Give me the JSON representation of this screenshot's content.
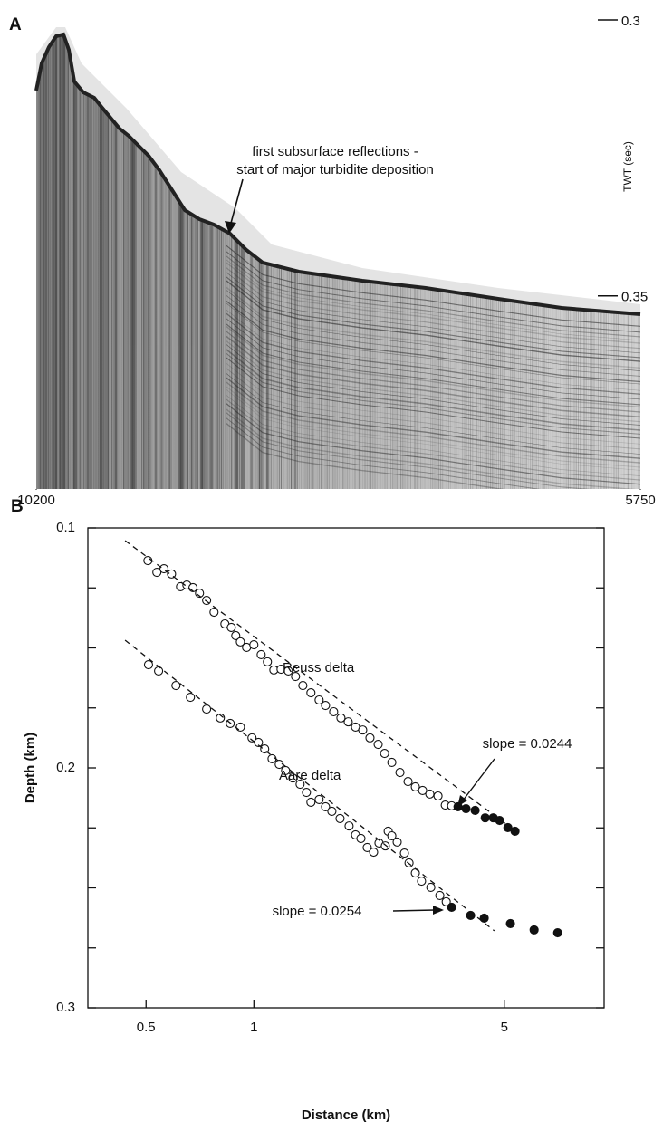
{
  "chart_data": [
    {
      "type": "image",
      "panel_label": "A",
      "annotation": [
        "first subsurface reflections -",
        "start of major turbidite deposition"
      ],
      "ylabel": "TWT (sec)",
      "ylim": [
        0.3,
        0.385
      ],
      "yticks": [
        0.3,
        0.35
      ],
      "xlim": [
        10200,
        5750
      ],
      "xticks": [
        10200,
        5750
      ]
    },
    {
      "type": "scatter",
      "panel_label": "B",
      "xlabel": "Distance (km)",
      "ylabel": "Depth (km)",
      "xscale": "log",
      "xlim": [
        0.344,
        9.5
      ],
      "xticks": [
        0.5,
        1,
        5
      ],
      "ylim": [
        0.1,
        0.3
      ],
      "yinvert": true,
      "yticks": [
        0.1,
        0.2,
        0.3
      ],
      "yminorticks": [
        0.125,
        0.15,
        0.175,
        0.225,
        0.25,
        0.275
      ],
      "color": "#111111",
      "annotations": [
        "Reuss delta",
        "Aare delta",
        "slope = 0.0244",
        "slope = 0.0254"
      ],
      "series": [
        {
          "marker": "open",
          "x": [
            0.506,
            0.536,
            0.561,
            0.589,
            0.624,
            0.65,
            0.676,
            0.705,
            0.738,
            0.774,
            0.83,
            0.865,
            0.89,
            0.917,
            0.954,
            1.0,
            1.048,
            1.091,
            1.137,
            1.191,
            1.248,
            1.307,
            1.37,
            1.443,
            1.521,
            1.585,
            1.67,
            1.75,
            1.834,
            1.922,
            2.013,
            2.109,
            2.223,
            2.317,
            2.427,
            2.557,
            2.694,
            2.823,
            2.958,
            3.098,
            3.266,
            3.422,
            3.565
          ],
          "values": [
            0.1136,
            0.1185,
            0.117,
            0.1192,
            0.1245,
            0.1238,
            0.1249,
            0.1272,
            0.1302,
            0.1351,
            0.14,
            0.1415,
            0.1449,
            0.1475,
            0.1498,
            0.1487,
            0.1528,
            0.1558,
            0.1592,
            0.1589,
            0.1596,
            0.1619,
            0.1657,
            0.1687,
            0.1717,
            0.174,
            0.1766,
            0.1792,
            0.1808,
            0.183,
            0.1842,
            0.1875,
            0.1902,
            0.194,
            0.1977,
            0.2019,
            0.2057,
            0.2079,
            0.2094,
            0.2109,
            0.2117,
            0.2155,
            0.2158
          ]
        },
        {
          "marker": "filled",
          "x": [
            3.714,
            3.91,
            4.146,
            4.423,
            4.659,
            4.853,
            5.117,
            5.358
          ],
          "values": [
            0.2162,
            0.217,
            0.2177,
            0.2208,
            0.2208,
            0.2219,
            0.2249,
            0.2264
          ]
        },
        {
          "marker": "open",
          "x": [
            0.508,
            0.542,
            0.606,
            0.665,
            0.738,
            0.806,
            0.859,
            0.917,
            0.988,
            1.03,
            1.072,
            1.124,
            1.177,
            1.226,
            1.285,
            1.346,
            1.402,
            1.443,
            1.521,
            1.585,
            1.651,
            1.74,
            1.844,
            1.922,
            1.99,
            2.072,
            2.159,
            2.235,
            2.328,
            2.371,
            2.427,
            2.512,
            2.632,
            2.711,
            2.823,
            2.938,
            3.118,
            3.304,
            3.443
          ],
          "values": [
            0.157,
            0.1596,
            0.1657,
            0.1706,
            0.1755,
            0.1792,
            0.1815,
            0.183,
            0.1875,
            0.1894,
            0.1921,
            0.1962,
            0.1985,
            0.2011,
            0.2042,
            0.2068,
            0.2102,
            0.2143,
            0.2132,
            0.2162,
            0.2181,
            0.2211,
            0.2242,
            0.2279,
            0.2294,
            0.2332,
            0.2351,
            0.2313,
            0.2325,
            0.2264,
            0.2283,
            0.2309,
            0.2355,
            0.2396,
            0.2438,
            0.2472,
            0.2498,
            0.2532,
            0.2558
          ]
        },
        {
          "marker": "filled",
          "x": [
            3.565,
            4.027,
            4.395,
            5.202,
            6.057,
            7.047
          ],
          "values": [
            0.2581,
            0.2615,
            0.2626,
            0.2649,
            0.2675,
            0.2687
          ]
        },
        {
          "marker": "dashed-line",
          "x": [
            0.437,
            5.17
          ],
          "values": [
            0.1053,
            0.2245
          ]
        },
        {
          "marker": "dashed-line",
          "x": [
            0.437,
            4.69
          ],
          "values": [
            0.1468,
            0.2679
          ]
        }
      ]
    }
  ]
}
